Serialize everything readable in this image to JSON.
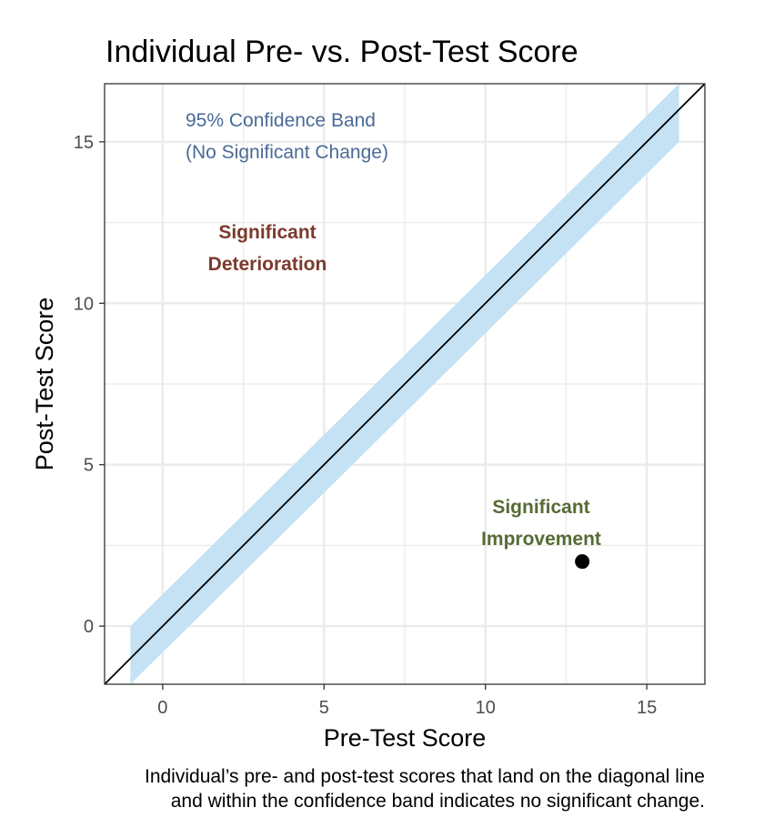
{
  "chart_data": {
    "type": "scatter",
    "title": "Individual Pre- vs. Post-Test Score",
    "xlabel": "Pre-Test Score",
    "ylabel": "Post-Test Score",
    "xlim": [
      -1.8,
      16.8
    ],
    "ylim": [
      -1.8,
      16.8
    ],
    "x_ticks": [
      0,
      5,
      10,
      15
    ],
    "y_ticks": [
      0,
      5,
      10,
      15
    ],
    "grid": true,
    "points": [
      {
        "x": 13,
        "y": 2
      }
    ],
    "diagonal_line": {
      "slope": 1,
      "intercept": 0
    },
    "confidence_band": {
      "x_range": [
        -1,
        16
      ],
      "half_width": 1
    },
    "annotations": {
      "band": {
        "lines": [
          "95% Confidence Band",
          "(No Significant Change)"
        ],
        "color": "#4a6a96"
      },
      "deterioration": {
        "lines": [
          "Significant",
          "Deterioration"
        ],
        "color": "#7b3a2c"
      },
      "improvement": {
        "lines": [
          "Significant",
          "Improvement"
        ],
        "color": "#566b34"
      }
    },
    "caption": [
      "Individual’s pre- and post-test scores that land on the diagonal line",
      "and within the confidence band indicates no significant change."
    ],
    "colors": {
      "band": "#c4e2f4",
      "line": "#000000",
      "point": "#000000",
      "grid": "#ebebeb"
    }
  }
}
